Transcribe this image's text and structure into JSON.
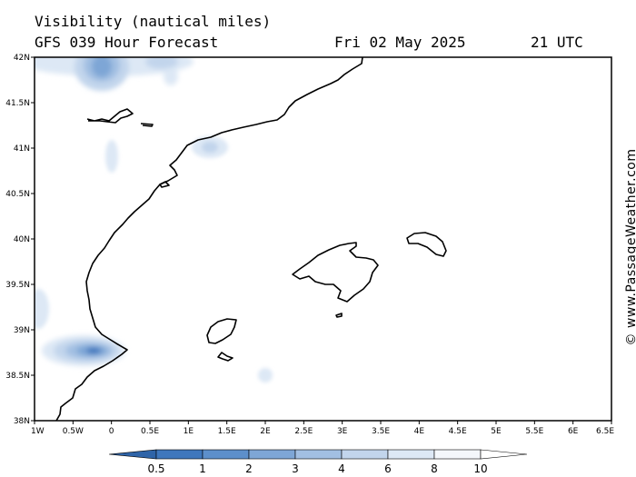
{
  "header": {
    "title": "Visibility (nautical miles)",
    "model": "GFS 039 Hour Forecast",
    "date": "Fri 02 May 2025",
    "time": "21 UTC"
  },
  "credit": "© www.PassageWeather.com",
  "axes": {
    "lat_range": [
      38,
      42
    ],
    "lon_range": [
      -1,
      6.5
    ],
    "lat_ticks": [
      "42N",
      "41.5N",
      "41N",
      "40.5N",
      "40N",
      "39.5N",
      "39N",
      "38.5N",
      "38N"
    ],
    "lon_ticks": [
      "1W",
      "0.5W",
      "0",
      "0.5E",
      "1E",
      "1.5E",
      "2E",
      "2.5E",
      "3E",
      "3.5E",
      "4E",
      "4.5E",
      "5E",
      "5.5E",
      "6E",
      "6.5E"
    ]
  },
  "colorbar": {
    "labels": [
      "0.5",
      "1",
      "2",
      "3",
      "4",
      "6",
      "8",
      "10"
    ],
    "colors": [
      "#3f77bd",
      "#5d8fcb",
      "#7ea6d6",
      "#a2bfe2",
      "#c2d5ec",
      "#dde8f5",
      "#f4f7fb"
    ]
  },
  "low_visibility_areas": [
    {
      "lon": -0.2,
      "lat": 41.9,
      "level": "1-2"
    },
    {
      "lon": 0.5,
      "lat": 41.95,
      "level": "4-6"
    },
    {
      "lon": 0.0,
      "lat": 40.9,
      "level": "8-10"
    },
    {
      "lon": 1.3,
      "lat": 41.0,
      "level": "4-6"
    },
    {
      "lon": -0.9,
      "lat": 39.25,
      "level": "8-10"
    },
    {
      "lon": -0.2,
      "lat": 38.77,
      "level": "0.5-1"
    },
    {
      "lon": 2.0,
      "lat": 38.5,
      "level": "8-10"
    }
  ]
}
